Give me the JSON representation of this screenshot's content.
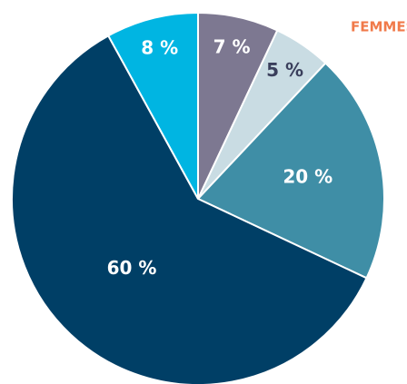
{
  "chart_data": {
    "type": "pie",
    "title": "FEMMES",
    "categories": [
      null,
      null,
      null,
      null,
      null
    ],
    "values": [
      7,
      5,
      20,
      60,
      8
    ],
    "value_labels": [
      "7 %",
      "5 %",
      "20 %",
      "60 %",
      "8 %"
    ],
    "colors": [
      "#7d7891",
      "#c9dce3",
      "#3f8ea6",
      "#003f66",
      "#00b5e2"
    ],
    "label_colors": [
      "#ffffff",
      "#3a3f5c",
      "#ffffff",
      "#ffffff",
      "#ffffff"
    ]
  }
}
